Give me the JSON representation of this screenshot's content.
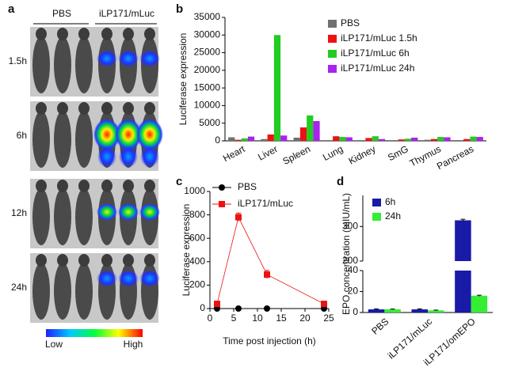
{
  "panel_a": {
    "label": "a",
    "groups": [
      "PBS",
      "iLP171/mLuc"
    ],
    "rows": [
      "1.5h",
      "6h",
      "12h",
      "24h"
    ],
    "colorbar": [
      "Low",
      "High"
    ]
  },
  "chart_data": [
    {
      "panel": "b",
      "type": "bar",
      "y_label": "Luciferase expression",
      "categories": [
        "Heart",
        "Liver",
        "Spleen",
        "Lung",
        "Kidney",
        "SmG",
        "Thymus",
        "Pancreas"
      ],
      "series": [
        {
          "name": "PBS",
          "color": "#707070",
          "values": [
            1000,
            500,
            900,
            200,
            200,
            200,
            300,
            200
          ]
        },
        {
          "name": "iLP171/mLuc 1.5h",
          "color": "#ee1111",
          "values": [
            300,
            1800,
            3800,
            1300,
            800,
            400,
            500,
            500
          ]
        },
        {
          "name": "iLP171/mLuc 6h",
          "color": "#22cc22",
          "values": [
            700,
            30000,
            7200,
            1100,
            1300,
            600,
            1100,
            1200
          ]
        },
        {
          "name": "iLP171/mLuc 24h",
          "color": "#aa22ee",
          "values": [
            1200,
            1500,
            5600,
            1000,
            500,
            900,
            1000,
            1100
          ]
        }
      ],
      "ylim": [
        0,
        35000
      ],
      "yticks": [
        0,
        5000,
        10000,
        15000,
        20000,
        25000,
        30000,
        35000
      ],
      "legend": "upper right"
    },
    {
      "panel": "c",
      "type": "line",
      "x_label": "Time post injection (h)",
      "y_label": "Luciferase expression",
      "x": [
        1.5,
        6,
        12,
        24
      ],
      "series": [
        {
          "name": "PBS",
          "color": "#000000",
          "marker": "circle",
          "values": [
            0,
            0,
            0,
            0
          ],
          "errors": [
            2,
            2,
            2,
            2
          ]
        },
        {
          "name": "iLP171/mLuc",
          "color": "#ee1111",
          "marker": "square",
          "values": [
            40,
            780,
            290,
            40
          ],
          "errors": [
            10,
            35,
            35,
            10
          ]
        }
      ],
      "xlim": [
        0,
        25
      ],
      "xticks": [
        0,
        5,
        10,
        15,
        20,
        25
      ],
      "ylim": [
        0,
        1000
      ],
      "yticks": [
        0,
        200,
        400,
        600,
        800,
        1000
      ],
      "legend": "upper center"
    },
    {
      "panel": "d",
      "type": "bar",
      "y_label": "EPO concentration (mIU/mL)",
      "categories": [
        "PBS",
        "iLP171/mLuc",
        "iLP171/omEPO"
      ],
      "series": [
        {
          "name": "6h",
          "color": "#1a1aa8",
          "values": [
            3,
            3,
            318
          ],
          "errors": [
            0.5,
            0.5,
            3
          ]
        },
        {
          "name": "24h",
          "color": "#33ee33",
          "values": [
            3,
            2,
            16
          ],
          "errors": [
            0.3,
            0.3,
            0.5
          ]
        }
      ],
      "ylim": [
        0,
        390
      ],
      "ybreak": [
        40,
        200
      ],
      "yticks": [
        0,
        20,
        40,
        200,
        300
      ],
      "legend": "upper left"
    }
  ]
}
